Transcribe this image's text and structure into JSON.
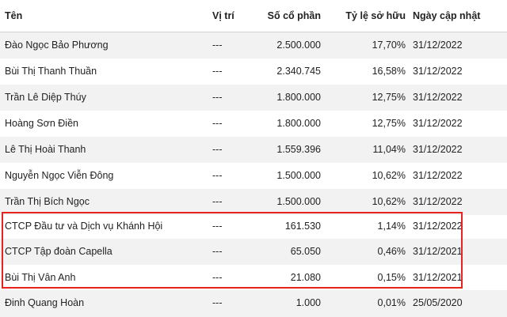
{
  "table": {
    "headers": {
      "name": "Tên",
      "position": "Vị trí",
      "shares": "Số cổ phần",
      "ownership": "Tỷ lệ sở hữu",
      "updated": "Ngày cập nhật"
    },
    "rows": [
      {
        "name": "Đào Ngọc Bảo Phương",
        "position": "---",
        "shares": "2.500.000",
        "ownership": "17,70%",
        "updated": "31/12/2022"
      },
      {
        "name": "Bùi Thị Thanh Thuần",
        "position": "---",
        "shares": "2.340.745",
        "ownership": "16,58%",
        "updated": "31/12/2022"
      },
      {
        "name": "Trần Lê Diệp Thúy",
        "position": "---",
        "shares": "1.800.000",
        "ownership": "12,75%",
        "updated": "31/12/2022"
      },
      {
        "name": "Hoàng Sơn Điền",
        "position": "---",
        "shares": "1.800.000",
        "ownership": "12,75%",
        "updated": "31/12/2022"
      },
      {
        "name": "Lê Thị Hoài Thanh",
        "position": "---",
        "shares": "1.559.396",
        "ownership": "11,04%",
        "updated": "31/12/2022"
      },
      {
        "name": "Nguyễn Ngọc Viễn Đông",
        "position": "---",
        "shares": "1.500.000",
        "ownership": "10,62%",
        "updated": "31/12/2022"
      },
      {
        "name": "Trần Thị Bích Ngọc",
        "position": "---",
        "shares": "1.500.000",
        "ownership": "10,62%",
        "updated": "31/12/2022"
      },
      {
        "name": "CTCP Đầu tư và Dịch vụ Khánh Hội",
        "position": "---",
        "shares": "161.530",
        "ownership": "1,14%",
        "updated": "31/12/2022"
      },
      {
        "name": "CTCP Tập đoàn Capella",
        "position": "---",
        "shares": "65.050",
        "ownership": "0,46%",
        "updated": "31/12/2021"
      },
      {
        "name": "Bùi Thị Vân Anh",
        "position": "---",
        "shares": "21.080",
        "ownership": "0,15%",
        "updated": "31/12/2021"
      },
      {
        "name": "Đinh Quang Hoàn",
        "position": "---",
        "shares": "1.000",
        "ownership": "0,01%",
        "updated": "25/05/2020"
      }
    ]
  },
  "highlight_color": "#e8231d",
  "stripe_color": "#f2f2f2"
}
